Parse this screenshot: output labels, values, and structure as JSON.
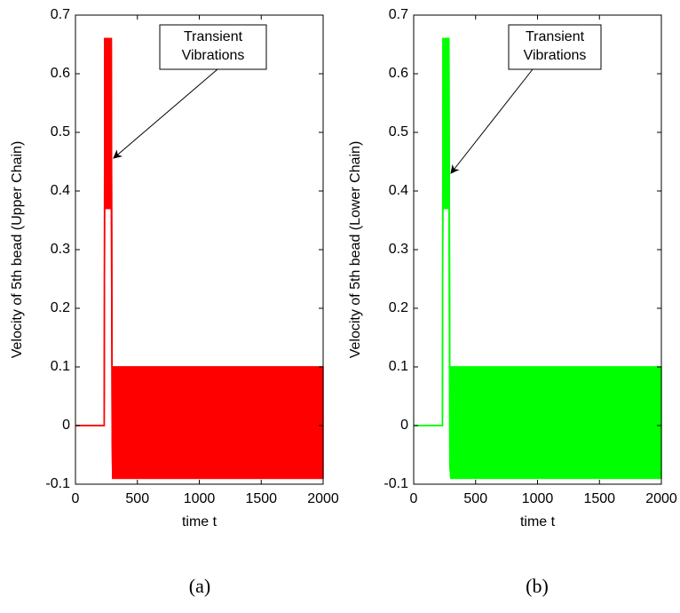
{
  "chart_data": [
    {
      "type": "band",
      "caption": "(a)",
      "xlabel": "time t",
      "ylabel": "Velocity of 5th bead (Upper Chain)",
      "annotation": [
        "Transient",
        "Vibrations"
      ],
      "color": "#ff0000",
      "x": [
        0,
        232,
        236,
        290,
        296,
        300,
        2000
      ],
      "upper": [
        0,
        0,
        0.66,
        0.66,
        0.1,
        0.1,
        0.1
      ],
      "lower": [
        0,
        0,
        0.37,
        0.37,
        -0.02,
        -0.09,
        -0.09
      ],
      "xlim": [
        0,
        2000
      ],
      "xticks": [
        0,
        500,
        1000,
        1500,
        2000
      ],
      "ylim": [
        -0.1,
        0.7
      ],
      "yticks": [
        -0.1,
        0,
        0.1,
        0.2,
        0.3,
        0.4,
        0.5,
        0.6,
        0.7
      ]
    },
    {
      "type": "band",
      "caption": "(b)",
      "xlabel": "time t",
      "ylabel": "Velocity of 5th bead (Lower Chain)",
      "annotation": [
        "Transient",
        "Vibrations"
      ],
      "color": "#00ff00",
      "x": [
        0,
        232,
        236,
        285,
        292,
        300,
        2000
      ],
      "upper": [
        0,
        0,
        0.66,
        0.66,
        0.1,
        0.1,
        0.1
      ],
      "lower": [
        0,
        0,
        0.37,
        0.37,
        -0.07,
        -0.09,
        -0.09
      ],
      "xlim": [
        0,
        2000
      ],
      "xticks": [
        0,
        500,
        1000,
        1500,
        2000
      ],
      "ylim": [
        -0.1,
        0.7
      ],
      "yticks": [
        -0.1,
        0,
        0.1,
        0.2,
        0.3,
        0.4,
        0.5,
        0.6,
        0.7
      ]
    }
  ]
}
